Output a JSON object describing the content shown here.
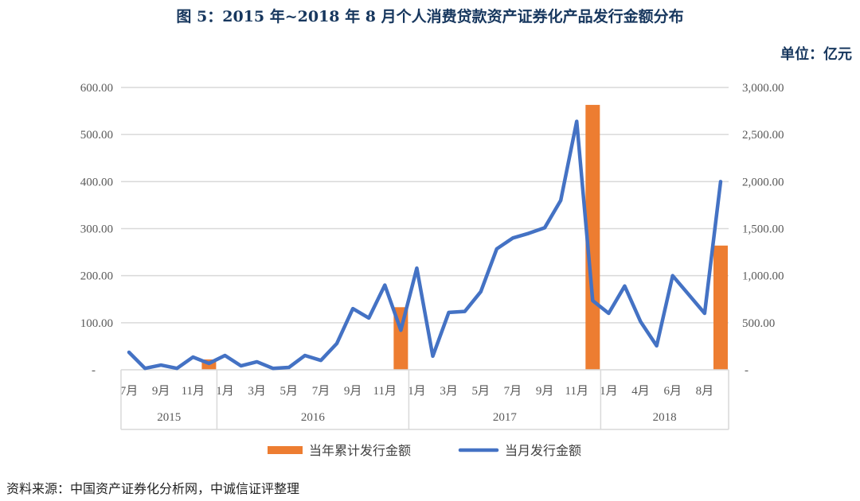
{
  "title": "图 5：2015 年~2018 年 8 月个人消费贷款资产证券化产品发行金额分布",
  "unit": "单位：亿元",
  "source": "资料来源：中国资产证券化分析网，中诚信证评整理",
  "colors": {
    "bar": "#ed7d31",
    "line": "#4472c4",
    "grid": "#d9d9d9"
  },
  "chart_data": {
    "type": "bar+line",
    "title": "图 5：2015 年~2018 年 8 月个人消费贷款资产证券化产品发行金额分布",
    "left_axis": {
      "ylim": [
        0,
        600
      ],
      "ticks": [
        "-",
        "100.00",
        "200.00",
        "300.00",
        "400.00",
        "500.00",
        "600.00"
      ]
    },
    "right_axis": {
      "ylim": [
        0,
        3000
      ],
      "ticks": [
        "-",
        "500.00",
        "1,000.00",
        "1,500.00",
        "2,000.00",
        "2,500.00",
        "3,000.00"
      ]
    },
    "groups": [
      {
        "year": "2015",
        "count": 6
      },
      {
        "year": "2016",
        "count": 12
      },
      {
        "year": "2017",
        "count": 12
      },
      {
        "year": "2018",
        "count": 8
      }
    ],
    "month_labels": [
      "7月",
      "",
      "9月",
      "",
      "11月",
      "",
      "1月",
      "",
      "3月",
      "",
      "5月",
      "",
      "7月",
      "",
      "9月",
      "",
      "11月",
      "",
      "1月",
      "",
      "3月",
      "",
      "5月",
      "",
      "7月",
      "",
      "9月",
      "",
      "11月",
      "",
      "1月",
      "",
      "4月",
      "",
      "6月",
      "",
      "8月",
      ""
    ],
    "legend_position": "bottom",
    "series": [
      {
        "name": "当年累计发行金额",
        "type": "bar",
        "axis": "left",
        "values": [
          null,
          null,
          null,
          null,
          null,
          22,
          null,
          null,
          null,
          null,
          null,
          null,
          null,
          null,
          null,
          null,
          null,
          133,
          null,
          null,
          null,
          null,
          null,
          null,
          null,
          null,
          null,
          null,
          null,
          563,
          null,
          null,
          null,
          null,
          null,
          null,
          null,
          264
        ]
      },
      {
        "name": "当月发行金额",
        "type": "line",
        "axis": "right",
        "values": [
          186,
          15,
          50,
          15,
          135,
          68,
          152,
          42,
          85,
          15,
          25,
          152,
          100,
          280,
          650,
          550,
          900,
          420,
          1080,
          145,
          610,
          620,
          830,
          1285,
          1400,
          1450,
          1510,
          1800,
          2640,
          735,
          600,
          890,
          510,
          255,
          1000,
          800,
          600,
          2000
        ]
      }
    ]
  }
}
